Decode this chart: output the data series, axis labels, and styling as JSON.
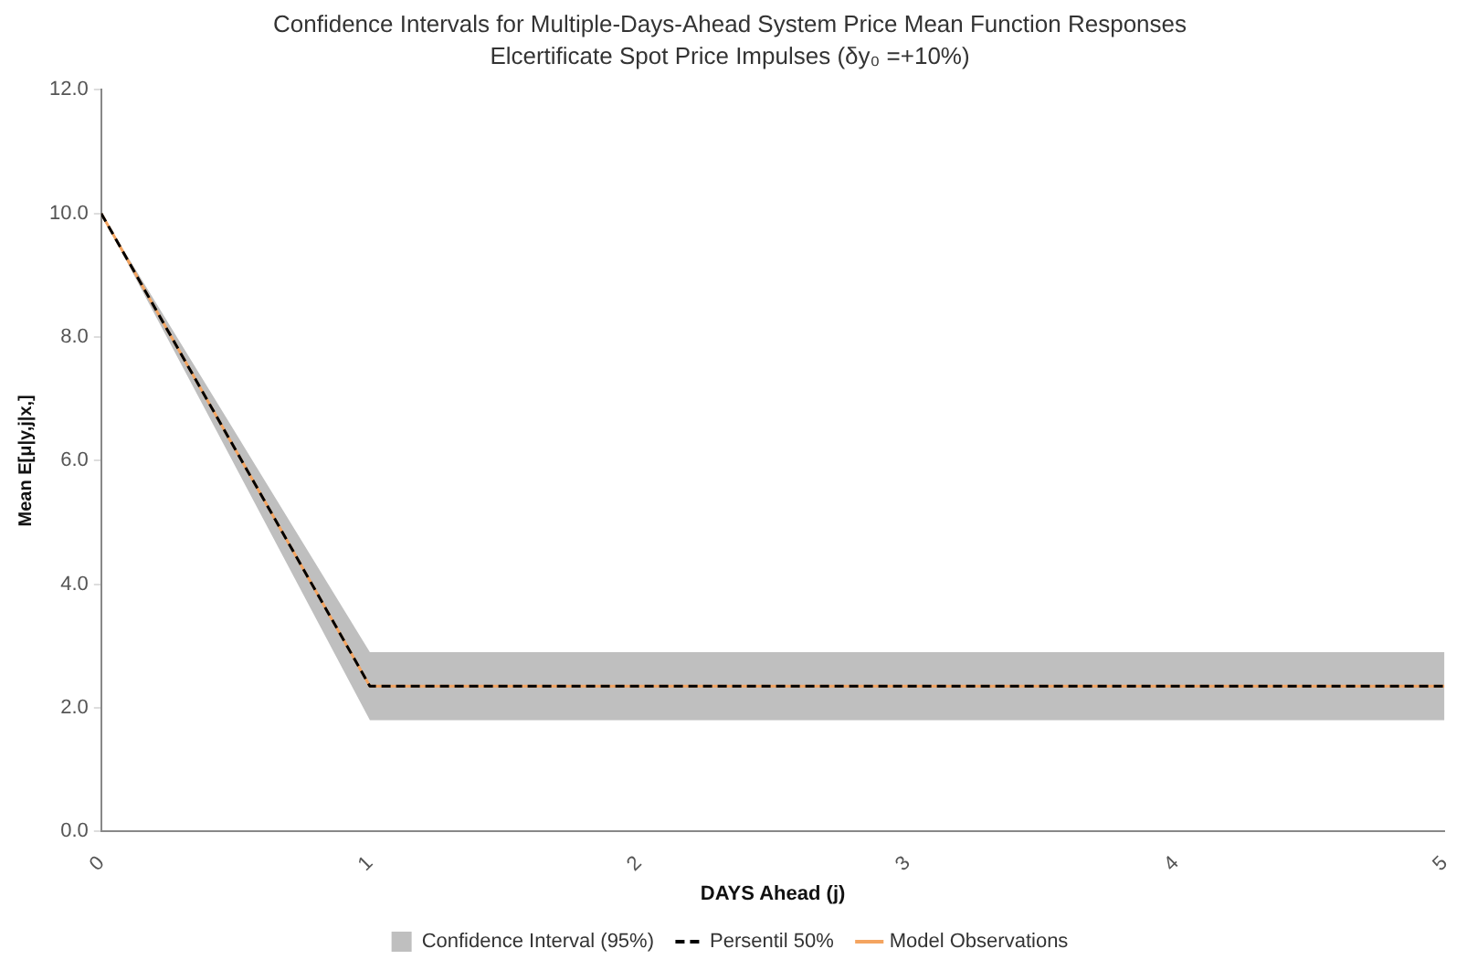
{
  "chart_data": {
    "type": "line",
    "title": "Confidence Intervals for Multiple-Days-Ahead System Price Mean Function Responses",
    "subtitle": "Elcertificate Spot Price Impulses (δy₀ =+10%)",
    "xlabel": "DAYS Ahead (j)",
    "ylabel": "Mean E[μ|y,j|x,]",
    "x": [
      0,
      1,
      2,
      3,
      4,
      5
    ],
    "series": [
      {
        "name": "Confidence Interval (95%)",
        "type": "area",
        "color": "#bfbfbf",
        "values": [
          null,
          null,
          null,
          null,
          null,
          null
        ],
        "lower": [
          10,
          1.8,
          1.8,
          1.8,
          1.8,
          1.8
        ],
        "upper": [
          10,
          2.9,
          2.9,
          2.9,
          2.9,
          2.9
        ]
      },
      {
        "name": "Persentil 50%",
        "type": "line",
        "color": "#000000",
        "line_style": "dashed",
        "values": [
          10,
          2.35,
          2.35,
          2.35,
          2.35,
          2.35
        ]
      },
      {
        "name": "Model Observations",
        "type": "line",
        "color": "#f4a460",
        "line_style": "solid",
        "values": [
          10,
          2.35,
          2.35,
          2.35,
          2.35,
          2.35
        ]
      }
    ],
    "xlim": [
      0,
      5
    ],
    "xticks": [
      0,
      1,
      2,
      3,
      4,
      5
    ],
    "ylim": [
      0,
      12
    ],
    "yticks": [
      {
        "value": 0,
        "label": "0.0"
      },
      {
        "value": 2,
        "label": "2.0"
      },
      {
        "value": 4,
        "label": "4.0"
      },
      {
        "value": 6,
        "label": "6.0"
      },
      {
        "value": 8,
        "label": "8.0"
      },
      {
        "value": 10,
        "label": "10.0"
      },
      {
        "value": 12,
        "label": "12.0"
      }
    ],
    "grid": false,
    "legend": "bottom",
    "marker": "none"
  }
}
